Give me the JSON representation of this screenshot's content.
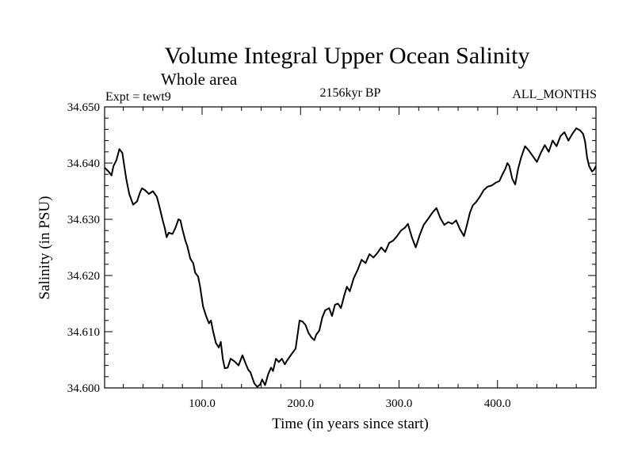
{
  "chart_data": {
    "type": "line",
    "title": "Volume Integral Upper Ocean Salinity",
    "subtitle": "Whole area",
    "experiment": "Expt = tewt9",
    "period": "2156kyr BP",
    "months": "ALL_MONTHS",
    "xlabel": "Time (in years since start)",
    "ylabel": "Salinity (in PSU)",
    "xlim": [
      1,
      500
    ],
    "ylim": [
      34.6,
      34.65
    ],
    "x_ticks": [
      100,
      200,
      300,
      400
    ],
    "x_tick_labels": [
      "100.0",
      "200.0",
      "300.0",
      "400.0"
    ],
    "y_ticks": [
      34.6,
      34.61,
      34.62,
      34.63,
      34.64,
      34.65
    ],
    "y_tick_labels": [
      "34.600",
      "34.610",
      "34.620",
      "34.630",
      "34.640",
      "34.650"
    ],
    "series": [
      {
        "name": "Salinity",
        "x": [
          1,
          5,
          8,
          10,
          13,
          16,
          19,
          21,
          23,
          26,
          30,
          34,
          37,
          39,
          42,
          46,
          50,
          54,
          57,
          60,
          62,
          64,
          66,
          70,
          73,
          76,
          78,
          80,
          83,
          85,
          88,
          91,
          93,
          96,
          98,
          101,
          104,
          107,
          109,
          111,
          114,
          117,
          119,
          121,
          123,
          126,
          129,
          133,
          137,
          141,
          145,
          147,
          149,
          153,
          156,
          159,
          161,
          164,
          167,
          170,
          172,
          175,
          178,
          181,
          184,
          186,
          190,
          195,
          199,
          202,
          205,
          208,
          211,
          214,
          216,
          219,
          222,
          225,
          229,
          232,
          235,
          238,
          241,
          244,
          247,
          250,
          254,
          258,
          262,
          266,
          270,
          274,
          278,
          282,
          286,
          290,
          294,
          298,
          302,
          306,
          309,
          313,
          317,
          321,
          325,
          330,
          334,
          338,
          342,
          346,
          350,
          354,
          358,
          362,
          366,
          369,
          372,
          375,
          378,
          382,
          386,
          390,
          394,
          398,
          402,
          405,
          408,
          410,
          412,
          415,
          418,
          421,
          424,
          428,
          432,
          436,
          440,
          444,
          448,
          452,
          456,
          460,
          464,
          468,
          472,
          476,
          480,
          484,
          487,
          489,
          491,
          493,
          496,
          498,
          500
        ],
        "values": [
          34.6392,
          34.6385,
          34.6378,
          34.6395,
          34.6405,
          34.6425,
          34.6418,
          34.6395,
          34.6372,
          34.6345,
          34.6326,
          34.6332,
          34.6348,
          34.6355,
          34.6352,
          34.6345,
          34.635,
          34.634,
          34.632,
          34.6298,
          34.6285,
          34.6268,
          34.6276,
          34.6274,
          34.6285,
          34.63,
          34.6298,
          34.6282,
          34.6262,
          34.6252,
          34.623,
          34.6222,
          34.6205,
          34.6198,
          34.618,
          34.6145,
          34.6128,
          34.6115,
          34.612,
          34.6102,
          34.608,
          34.6072,
          34.6082,
          34.6052,
          34.6035,
          34.6036,
          34.6052,
          34.6047,
          34.604,
          34.6058,
          34.604,
          34.6032,
          34.6028,
          34.6008,
          34.6002,
          34.6006,
          34.6015,
          34.6005,
          34.6024,
          34.6036,
          34.603,
          34.6052,
          34.6046,
          34.6052,
          34.6042,
          34.6048,
          34.6058,
          34.607,
          34.612,
          34.6118,
          34.6112,
          34.6098,
          34.609,
          34.6085,
          34.6095,
          34.6102,
          34.6125,
          34.6138,
          34.6142,
          34.6128,
          34.6148,
          34.615,
          34.6142,
          34.6162,
          34.618,
          34.6172,
          34.6195,
          34.621,
          34.6228,
          34.6222,
          34.6238,
          34.6232,
          34.624,
          34.625,
          34.6242,
          34.6258,
          34.6262,
          34.627,
          34.628,
          34.6285,
          34.6292,
          34.6268,
          34.625,
          34.6272,
          34.629,
          34.6302,
          34.6312,
          34.632,
          34.6302,
          34.629,
          34.6295,
          34.6292,
          34.6298,
          34.6282,
          34.627,
          34.629,
          34.6312,
          34.6325,
          34.633,
          34.634,
          34.6352,
          34.6358,
          34.636,
          34.6365,
          34.6368,
          34.638,
          34.639,
          34.64,
          34.6395,
          34.6372,
          34.6362,
          34.639,
          34.641,
          34.643,
          34.6422,
          34.6412,
          34.6402,
          34.6418,
          34.6432,
          34.642,
          34.644,
          34.643,
          34.6448,
          34.6455,
          34.644,
          34.6452,
          34.6462,
          34.6458,
          34.6452,
          34.6438,
          34.641,
          34.6395,
          34.6385,
          34.6388,
          34.6395
        ]
      }
    ]
  }
}
